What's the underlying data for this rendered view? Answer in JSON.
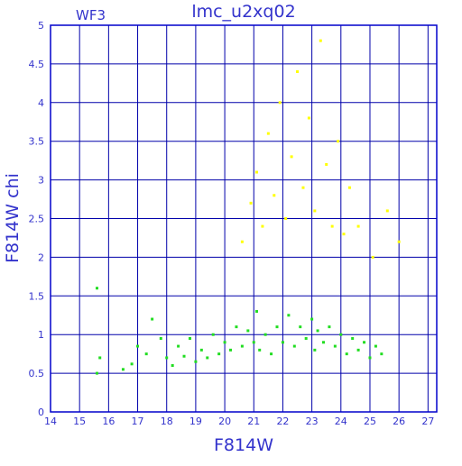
{
  "chart_data": {
    "type": "scatter",
    "title": "lmc_u2xq02",
    "subtitle": "WF3",
    "xlabel": "F814W",
    "ylabel": "F814W  chi",
    "xlim": [
      14,
      27.3
    ],
    "ylim": [
      0,
      5
    ],
    "x_ticks": [
      14,
      15,
      16,
      17,
      18,
      19,
      20,
      21,
      22,
      23,
      24,
      25,
      26,
      27
    ],
    "y_ticks": [
      0,
      0.5,
      1,
      1.5,
      2,
      2.5,
      3,
      3.5,
      4,
      4.5,
      5
    ],
    "x_tick_labels": [
      "14",
      "15",
      "16",
      "17",
      "18",
      "19",
      "20",
      "21",
      "22",
      "23",
      "24",
      "25",
      "26",
      "27"
    ],
    "y_tick_labels": [
      "0",
      "0.5",
      "1",
      "1.5",
      "2",
      "2.5",
      "3",
      "3.5",
      "4",
      "4.5",
      "5"
    ],
    "grid": true,
    "colors": {
      "axis": "#0000cc",
      "grid": "#0000aa",
      "text": "#3333cc",
      "green": "#22dd22",
      "yellow": "#ffff00"
    },
    "series": [
      {
        "color": "#22dd22",
        "points": [
          [
            15.6,
            0.5
          ],
          [
            15.7,
            0.7
          ],
          [
            15.6,
            1.6
          ],
          [
            16.5,
            0.55
          ],
          [
            16.8,
            0.62
          ],
          [
            17.0,
            0.85
          ],
          [
            17.3,
            0.75
          ],
          [
            17.5,
            1.2
          ],
          [
            17.8,
            0.95
          ],
          [
            18.0,
            0.7
          ],
          [
            18.2,
            0.6
          ],
          [
            18.4,
            0.85
          ],
          [
            18.6,
            0.72
          ],
          [
            18.8,
            0.95
          ],
          [
            19.0,
            0.65
          ],
          [
            19.2,
            0.8
          ],
          [
            19.4,
            0.7
          ],
          [
            19.6,
            1.0
          ],
          [
            19.8,
            0.75
          ],
          [
            20.0,
            0.9
          ],
          [
            20.2,
            0.8
          ],
          [
            20.4,
            1.1
          ],
          [
            20.6,
            0.85
          ],
          [
            20.8,
            1.05
          ],
          [
            21.0,
            0.9
          ],
          [
            21.1,
            1.3
          ],
          [
            21.2,
            0.8
          ],
          [
            21.4,
            1.0
          ],
          [
            21.6,
            0.75
          ],
          [
            21.8,
            1.1
          ],
          [
            22.0,
            0.9
          ],
          [
            22.2,
            1.25
          ],
          [
            22.4,
            0.85
          ],
          [
            22.6,
            1.1
          ],
          [
            22.8,
            0.95
          ],
          [
            23.0,
            1.2
          ],
          [
            23.1,
            0.8
          ],
          [
            23.2,
            1.05
          ],
          [
            23.4,
            0.9
          ],
          [
            23.6,
            1.1
          ],
          [
            23.8,
            0.85
          ],
          [
            24.0,
            1.0
          ],
          [
            24.2,
            0.75
          ],
          [
            24.4,
            0.95
          ],
          [
            24.6,
            0.8
          ],
          [
            24.8,
            0.9
          ],
          [
            25.0,
            0.7
          ],
          [
            25.2,
            0.85
          ],
          [
            25.4,
            0.75
          ]
        ]
      },
      {
        "color": "#ffff00",
        "points": [
          [
            20.6,
            2.2
          ],
          [
            20.9,
            2.7
          ],
          [
            21.1,
            3.1
          ],
          [
            21.3,
            2.4
          ],
          [
            21.5,
            3.6
          ],
          [
            21.7,
            2.8
          ],
          [
            21.9,
            4.0
          ],
          [
            22.1,
            2.5
          ],
          [
            22.3,
            3.3
          ],
          [
            22.5,
            4.4
          ],
          [
            22.7,
            2.9
          ],
          [
            22.9,
            3.8
          ],
          [
            23.1,
            2.6
          ],
          [
            23.3,
            4.8
          ],
          [
            23.5,
            3.2
          ],
          [
            23.7,
            2.4
          ],
          [
            23.9,
            3.5
          ],
          [
            24.1,
            2.3
          ],
          [
            24.3,
            2.9
          ],
          [
            24.6,
            2.4
          ],
          [
            25.1,
            2.0
          ],
          [
            25.6,
            2.6
          ],
          [
            26.0,
            2.2
          ]
        ]
      }
    ]
  }
}
